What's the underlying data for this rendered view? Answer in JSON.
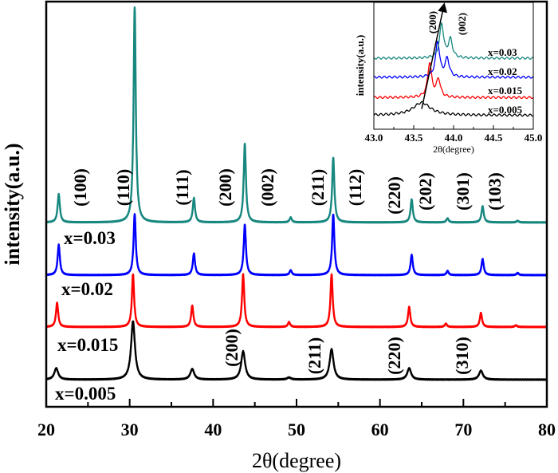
{
  "chart_data": [
    {
      "type": "line",
      "xlabel": "2θ(degree)",
      "ylabel": "intensity(a.u.)",
      "xlim": [
        20,
        80
      ],
      "ylim": [
        0,
        100
      ],
      "xticks": [
        20,
        30,
        40,
        50,
        60,
        70,
        80
      ],
      "yticks_shown": false,
      "grid": false,
      "legend": "inline labels left of each trace",
      "series": [
        {
          "name": "x=0.005",
          "color": "#000000",
          "baseline": 6.7,
          "width": 0.28,
          "peaks": [
            [
              21.2,
              2.8
            ],
            [
              30.4,
              14.4
            ],
            [
              37.5,
              2.6
            ],
            [
              43.6,
              7.0
            ],
            [
              49.1,
              0.5
            ],
            [
              54.2,
              7.5
            ],
            [
              63.5,
              2.8
            ],
            [
              72.1,
              2.2
            ]
          ]
        },
        {
          "name": "x=0.015",
          "color": "#ff0000",
          "baseline": 19.7,
          "width": 0.16,
          "peaks": [
            [
              21.3,
              6.0
            ],
            [
              30.4,
              13.0
            ],
            [
              37.5,
              5.3
            ],
            [
              43.6,
              13.0
            ],
            [
              49.1,
              1.2
            ],
            [
              54.2,
              13.0
            ],
            [
              63.5,
              5.0
            ],
            [
              67.9,
              0.8
            ],
            [
              72.1,
              3.5
            ],
            [
              76.3,
              0.4
            ]
          ]
        },
        {
          "name": "x=0.02",
          "color": "#0000ff",
          "baseline": 32.5,
          "width": 0.16,
          "peaks": [
            [
              21.5,
              7.5
            ],
            [
              30.6,
              15.0
            ],
            [
              37.7,
              5.3
            ],
            [
              43.8,
              12.5
            ],
            [
              49.3,
              1.2
            ],
            [
              54.4,
              15.0
            ],
            [
              63.8,
              5.0
            ],
            [
              68.1,
              1.0
            ],
            [
              72.3,
              4.0
            ],
            [
              76.5,
              0.5
            ]
          ]
        },
        {
          "name": "x=0.03",
          "color": "#17877f",
          "baseline": 45.5,
          "width": 0.16,
          "peaks": [
            [
              21.5,
              7.0
            ],
            [
              30.6,
              53.0
            ],
            [
              37.7,
              6.0
            ],
            [
              43.8,
              19.5
            ],
            [
              49.3,
              1.2
            ],
            [
              54.4,
              16.0
            ],
            [
              63.8,
              5.7
            ],
            [
              68.1,
              1.0
            ],
            [
              72.3,
              4.0
            ],
            [
              76.5,
              0.4
            ]
          ]
        }
      ],
      "annotations_top": [
        "(100)",
        "(110)",
        "(111)",
        "(200)",
        "(002)",
        "(211)",
        "(112)",
        "(220)",
        "(202)",
        "(301)",
        "(103)"
      ],
      "annotations_bottom": [
        "(200)",
        "(211)",
        "(220)",
        "(310)"
      ]
    },
    {
      "type": "line",
      "inset": true,
      "xlabel": "2θ(degree)",
      "ylabel": "intensity(a.u.)",
      "xlim": [
        43.0,
        45.0
      ],
      "ylim": [
        0,
        10
      ],
      "xticks": [
        "43.0",
        "43.5",
        "44.0",
        "44.5",
        "45.0"
      ],
      "grid": false,
      "series": [
        {
          "name": "x=0.005",
          "color": "#000000",
          "baseline": 1.1,
          "width": 0.13,
          "peaks": [
            [
              43.6,
              1.0
            ]
          ]
        },
        {
          "name": "x=0.015",
          "color": "#ff0000",
          "baseline": 2.5,
          "width": 0.03,
          "peaks": [
            [
              43.7,
              2.7
            ],
            [
              43.81,
              1.4
            ]
          ]
        },
        {
          "name": "x=0.02",
          "color": "#0000ff",
          "baseline": 4.1,
          "width": 0.03,
          "peaks": [
            [
              43.8,
              2.8
            ],
            [
              43.92,
              1.45
            ]
          ]
        },
        {
          "name": "x=0.03",
          "color": "#17877f",
          "baseline": 5.6,
          "width": 0.03,
          "peaks": [
            [
              43.85,
              2.7
            ],
            [
              43.96,
              1.45
            ]
          ]
        }
      ],
      "annotations": [
        "(200)",
        "(002)"
      ],
      "arrow": {
        "from": [
          43.6,
          1.6
        ],
        "to": [
          43.88,
          9.8
        ]
      }
    }
  ]
}
